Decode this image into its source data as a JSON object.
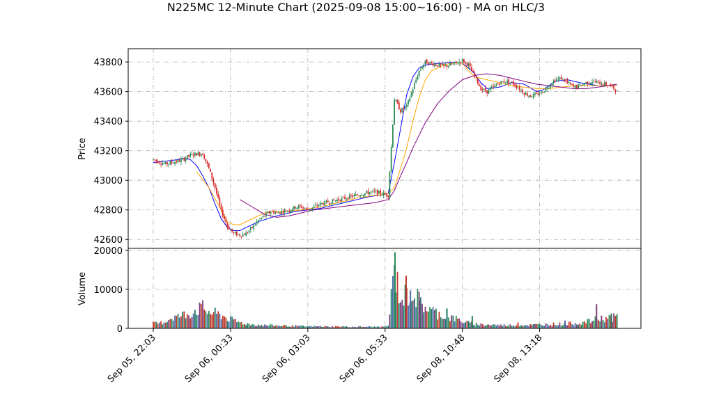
{
  "chart_data": [
    {
      "type": "candlestick",
      "title": "N225MC 12-Minute Chart (2025-09-08 15:00~16:00) - MA on HLC/3",
      "ylabel": "Price",
      "ylim": [
        42540,
        43890
      ],
      "yticks": [
        42600,
        42800,
        43000,
        43200,
        43400,
        43600,
        43800
      ],
      "ytick_labels": [
        "42600",
        "42800",
        "43000",
        "43200",
        "43400",
        "43600",
        "43800"
      ],
      "xtick_labels": [
        "Sep 05, 22:03",
        "Sep 06, 00:33",
        "Sep 06, 03:03",
        "Sep 06, 05:33",
        "Sep 08, 10:48",
        "Sep 08, 13:18"
      ],
      "xtick_index": [
        0,
        12.5,
        25,
        37.5,
        50,
        62.5
      ],
      "x_count": 76,
      "grid": true,
      "up_color": "#2e8b57",
      "down_color": "#d62728",
      "ohlc_anchors": [
        [
          0,
          43140
        ],
        [
          2,
          43110
        ],
        [
          4,
          43130
        ],
        [
          5,
          43145
        ],
        [
          6,
          43170
        ],
        [
          7,
          43180
        ],
        [
          8,
          43180
        ],
        [
          9,
          43080
        ],
        [
          10,
          42950
        ],
        [
          11,
          42790
        ],
        [
          12,
          42690
        ],
        [
          13,
          42640
        ],
        [
          14,
          42630
        ],
        [
          15,
          42640
        ],
        [
          16,
          42680
        ],
        [
          17,
          42730
        ],
        [
          18,
          42760
        ],
        [
          19,
          42790
        ],
        [
          20,
          42780
        ],
        [
          21,
          42790
        ],
        [
          22,
          42800
        ],
        [
          23,
          42820
        ],
        [
          24,
          42820
        ],
        [
          25,
          42800
        ],
        [
          26,
          42820
        ],
        [
          27,
          42840
        ],
        [
          28,
          42850
        ],
        [
          29,
          42860
        ],
        [
          30,
          42870
        ],
        [
          31,
          42880
        ],
        [
          32,
          42890
        ],
        [
          33,
          42900
        ],
        [
          34,
          42910
        ],
        [
          35,
          42920
        ],
        [
          36,
          42920
        ],
        [
          37,
          42910
        ],
        [
          38,
          42900
        ],
        [
          39,
          43550
        ],
        [
          40,
          43470
        ],
        [
          41,
          43500
        ],
        [
          42,
          43620
        ],
        [
          43,
          43740
        ],
        [
          44,
          43800
        ],
        [
          45,
          43790
        ],
        [
          46,
          43780
        ],
        [
          47,
          43770
        ],
        [
          48,
          43780
        ],
        [
          49,
          43790
        ],
        [
          50,
          43810
        ],
        [
          51,
          43780
        ],
        [
          52,
          43700
        ],
        [
          53,
          43620
        ],
        [
          54,
          43600
        ],
        [
          55,
          43630
        ],
        [
          56,
          43660
        ],
        [
          57,
          43670
        ],
        [
          58,
          43660
        ],
        [
          59,
          43630
        ],
        [
          60,
          43590
        ],
        [
          61,
          43570
        ],
        [
          62,
          43580
        ],
        [
          63,
          43600
        ],
        [
          64,
          43640
        ],
        [
          65,
          43680
        ],
        [
          66,
          43690
        ],
        [
          67,
          43660
        ],
        [
          68,
          43630
        ],
        [
          69,
          43640
        ],
        [
          70,
          43660
        ],
        [
          71,
          43670
        ],
        [
          72,
          43660
        ],
        [
          73,
          43650
        ],
        [
          74,
          43640
        ],
        [
          75,
          43600
        ]
      ],
      "ma_series": [
        {
          "color": "#0000ff",
          "points": [
            [
              0,
              43120
            ],
            [
              4,
              43140
            ],
            [
              5,
              43150
            ],
            [
              6,
              43140
            ],
            [
              7,
              43100
            ],
            [
              8,
              43030
            ],
            [
              9,
              42950
            ],
            [
              10,
              42840
            ],
            [
              11,
              42740
            ],
            [
              12,
              42680
            ],
            [
              13,
              42660
            ],
            [
              14,
              42660
            ],
            [
              15,
              42680
            ],
            [
              17,
              42720
            ],
            [
              20,
              42760
            ],
            [
              23,
              42790
            ],
            [
              25,
              42800
            ],
            [
              27,
              42810
            ],
            [
              29,
              42830
            ],
            [
              31,
              42850
            ],
            [
              33,
              42870
            ],
            [
              35,
              42890
            ],
            [
              38,
              42910
            ],
            [
              39,
              43120
            ],
            [
              40,
              43350
            ],
            [
              41,
              43580
            ],
            [
              42,
              43700
            ],
            [
              43,
              43760
            ],
            [
              44,
              43780
            ],
            [
              46,
              43790
            ],
            [
              49,
              43800
            ],
            [
              50,
              43790
            ],
            [
              51,
              43760
            ],
            [
              52,
              43720
            ],
            [
              53,
              43660
            ],
            [
              54,
              43620
            ],
            [
              56,
              43630
            ],
            [
              58,
              43660
            ],
            [
              60,
              43650
            ],
            [
              62,
              43600
            ],
            [
              63,
              43610
            ],
            [
              64,
              43640
            ],
            [
              65,
              43670
            ],
            [
              67,
              43680
            ],
            [
              69,
              43660
            ],
            [
              72,
              43640
            ],
            [
              75,
              43640
            ]
          ]
        },
        {
          "color": "#ffa500",
          "points": [
            [
              7,
              43060
            ],
            [
              9,
              42950
            ],
            [
              11,
              42800
            ],
            [
              12,
              42720
            ],
            [
              13,
              42700
            ],
            [
              14,
              42700
            ],
            [
              16,
              42740
            ],
            [
              18,
              42780
            ],
            [
              20,
              42790
            ],
            [
              22,
              42790
            ],
            [
              24,
              42800
            ],
            [
              27,
              42820
            ],
            [
              30,
              42850
            ],
            [
              33,
              42880
            ],
            [
              36,
              42900
            ],
            [
              38,
              42910
            ],
            [
              39,
              42950
            ],
            [
              40,
              43080
            ],
            [
              41,
              43220
            ],
            [
              42,
              43400
            ],
            [
              43,
              43560
            ],
            [
              44,
              43680
            ],
            [
              45,
              43740
            ],
            [
              47,
              43780
            ],
            [
              49,
              43800
            ],
            [
              50,
              43790
            ],
            [
              51,
              43740
            ],
            [
              52,
              43700
            ],
            [
              54,
              43680
            ],
            [
              56,
              43660
            ],
            [
              58,
              43640
            ],
            [
              60,
              43630
            ],
            [
              62,
              43620
            ],
            [
              64,
              43620
            ],
            [
              66,
              43630
            ],
            [
              68,
              43640
            ],
            [
              70,
              43640
            ],
            [
              72,
              43640
            ],
            [
              75,
              43640
            ]
          ]
        },
        {
          "color": "#800080",
          "points": [
            [
              14,
              42870
            ],
            [
              16,
              42820
            ],
            [
              18,
              42770
            ],
            [
              20,
              42750
            ],
            [
              22,
              42760
            ],
            [
              24,
              42780
            ],
            [
              26,
              42800
            ],
            [
              28,
              42810
            ],
            [
              30,
              42820
            ],
            [
              32,
              42830
            ],
            [
              34,
              42840
            ],
            [
              36,
              42850
            ],
            [
              38,
              42870
            ],
            [
              39,
              42930
            ],
            [
              40,
              43030
            ],
            [
              41,
              43120
            ],
            [
              42,
              43220
            ],
            [
              44,
              43390
            ],
            [
              46,
              43520
            ],
            [
              48,
              43610
            ],
            [
              50,
              43680
            ],
            [
              52,
              43710
            ],
            [
              54,
              43720
            ],
            [
              56,
              43710
            ],
            [
              58,
              43690
            ],
            [
              60,
              43670
            ],
            [
              62,
              43650
            ],
            [
              64,
              43640
            ],
            [
              66,
              43630
            ],
            [
              68,
              43620
            ],
            [
              70,
              43620
            ],
            [
              72,
              43630
            ],
            [
              75,
              43650
            ]
          ]
        }
      ]
    },
    {
      "type": "bar",
      "ylabel": "Volume",
      "ylim": [
        0,
        20500
      ],
      "yticks": [
        0,
        10000,
        20000
      ],
      "ytick_labels": [
        "0",
        "10000",
        "20000"
      ],
      "grid": true,
      "volume_anchors": [
        [
          0,
          1200
        ],
        [
          1,
          1300
        ],
        [
          2,
          1800
        ],
        [
          3,
          2800
        ],
        [
          4,
          3000
        ],
        [
          5,
          3500
        ],
        [
          6,
          3800
        ],
        [
          7,
          4800
        ],
        [
          8,
          5200
        ],
        [
          9,
          4200
        ],
        [
          10,
          3800
        ],
        [
          11,
          3400
        ],
        [
          12,
          2600
        ],
        [
          13,
          2000
        ],
        [
          14,
          1500
        ],
        [
          15,
          1200
        ],
        [
          16,
          1000
        ],
        [
          17,
          900
        ],
        [
          18,
          800
        ],
        [
          19,
          800
        ],
        [
          20,
          700
        ],
        [
          21,
          700
        ],
        [
          22,
          600
        ],
        [
          23,
          600
        ],
        [
          24,
          550
        ],
        [
          25,
          500
        ],
        [
          26,
          500
        ],
        [
          27,
          500
        ],
        [
          28,
          450
        ],
        [
          29,
          450
        ],
        [
          30,
          450
        ],
        [
          31,
          450
        ],
        [
          32,
          400
        ],
        [
          33,
          400
        ],
        [
          34,
          400
        ],
        [
          35,
          400
        ],
        [
          36,
          400
        ],
        [
          37,
          400
        ],
        [
          38,
          600
        ],
        [
          39,
          15000
        ],
        [
          40,
          7500
        ],
        [
          41,
          8500
        ],
        [
          42,
          9000
        ],
        [
          43,
          7000
        ],
        [
          44,
          5500
        ],
        [
          45,
          4500
        ],
        [
          46,
          3800
        ],
        [
          47,
          3200
        ],
        [
          48,
          2800
        ],
        [
          49,
          2400
        ],
        [
          50,
          1800
        ],
        [
          51,
          1400
        ],
        [
          52,
          1200
        ],
        [
          53,
          1000
        ],
        [
          54,
          900
        ],
        [
          55,
          900
        ],
        [
          56,
          800
        ],
        [
          57,
          800
        ],
        [
          58,
          800
        ],
        [
          59,
          800
        ],
        [
          60,
          850
        ],
        [
          61,
          850
        ],
        [
          62,
          900
        ],
        [
          63,
          1000
        ],
        [
          64,
          1100
        ],
        [
          65,
          1100
        ],
        [
          66,
          1100
        ],
        [
          67,
          1200
        ],
        [
          68,
          1300
        ],
        [
          69,
          1400
        ],
        [
          70,
          1600
        ],
        [
          71,
          2000
        ],
        [
          72,
          2400
        ],
        [
          73,
          2600
        ],
        [
          74,
          2700
        ],
        [
          75,
          2800
        ]
      ],
      "volume_spikes": [
        [
          39.1,
          19500
        ],
        [
          40.9,
          13500
        ],
        [
          41.6,
          9700
        ],
        [
          43.1,
          7200
        ],
        [
          47.5,
          5100
        ],
        [
          51.6,
          3200
        ],
        [
          59.0,
          1500
        ],
        [
          66.6,
          2000
        ],
        [
          71.7,
          6200
        ],
        [
          74.1,
          3800
        ],
        [
          75.0,
          3600
        ]
      ]
    }
  ]
}
